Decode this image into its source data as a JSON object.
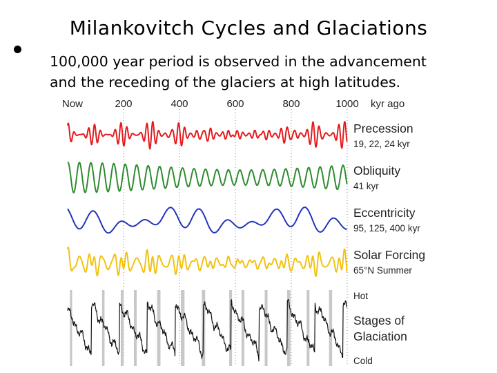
{
  "slide": {
    "title": "Milankovitch Cycles and Glaciations",
    "bullet_line1": "100,000 year period is observed in the advancement",
    "bullet_line2": "and the receding of the glaciers at high latitudes."
  },
  "chart_data": {
    "type": "line",
    "x_axis": {
      "ticks": [
        "Now",
        "200",
        "400",
        "600",
        "800",
        "1000"
      ],
      "tick_values": [
        0,
        200,
        400,
        600,
        800,
        1000
      ],
      "unit_label": "kyr ago",
      "range": [
        0,
        1000
      ],
      "grid": "dotted vertical"
    },
    "series": [
      {
        "name": "Precession",
        "subtitle": "19, 22, 24 kyr",
        "color": "#e41a1c",
        "periods_kyr": [
          19,
          22,
          24
        ]
      },
      {
        "name": "Obliquity",
        "subtitle": "41 kyr",
        "color": "#2e8b2e",
        "periods_kyr": [
          41
        ]
      },
      {
        "name": "Eccentricity",
        "subtitle": "95, 125, 400 kyr",
        "color": "#2233bb",
        "periods_kyr": [
          95,
          125,
          400
        ]
      },
      {
        "name": "Solar Forcing",
        "subtitle": "65°N Summer",
        "color": "#f2c20f"
      },
      {
        "name": "Stages of Glaciation",
        "color": "#111111"
      }
    ],
    "glaciation_labels": {
      "line1": "Stages of",
      "line2": "Glaciation",
      "top": "Hot",
      "bottom": "Cold"
    },
    "interglacial_bands_kyr": [
      [
        8,
        16
      ],
      [
        123,
        132
      ],
      [
        190,
        200
      ],
      [
        237,
        247
      ],
      [
        320,
        332
      ],
      [
        405,
        418
      ],
      [
        480,
        492
      ],
      [
        578,
        588
      ],
      [
        622,
        632
      ],
      [
        705,
        715
      ],
      [
        785,
        797
      ],
      [
        855,
        865
      ],
      [
        935,
        946
      ]
    ]
  }
}
